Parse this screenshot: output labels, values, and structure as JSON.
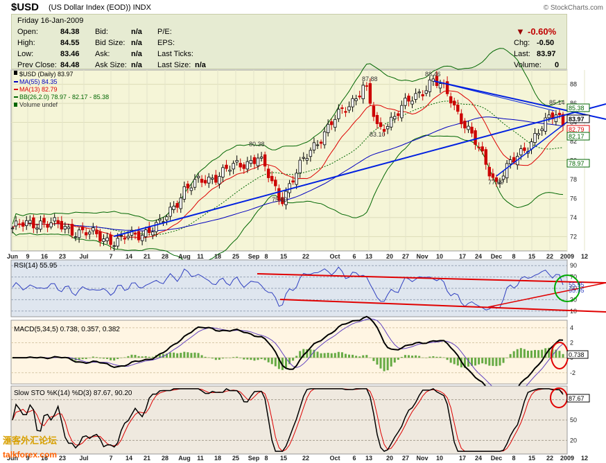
{
  "header": {
    "symbol": "$USD",
    "description": "(US Dollar Index (EOD))",
    "exchange": "INDX",
    "credit": "© StockCharts.com"
  },
  "quote": {
    "date": "Friday  16-Jan-2009",
    "open_label": "Open:",
    "open": "84.38",
    "high_label": "High:",
    "high": "84.55",
    "low_label": "Low:",
    "low": "83.46",
    "prev_label": "Prev Close:",
    "prev": "84.48",
    "bid_label": "Bid:",
    "bid": "n/a",
    "bidsize_label": "Bid Size:",
    "bidsize": "n/a",
    "ask_label": "Ask:",
    "ask": "n/a",
    "asksize_label": "Ask Size:",
    "asksize": "n/a",
    "pe_label": "P/E:",
    "eps_label": "EPS:",
    "lastticks_label": "Last Ticks:",
    "lastsize_label": "Last Size:",
    "lastsize": "n/a",
    "pct_change": "-0.60%",
    "chg_label": "Chg:",
    "chg": "-0.50",
    "last_label": "Last:",
    "last": "83.97",
    "volume_label": "Volume:",
    "volume": "0",
    "down_color": "#990000"
  },
  "legend": {
    "price": "$USD (Daily) 83.97",
    "ma55": "MA(55) 84.35",
    "ma13": "MA(13) 82.79",
    "bb": "BB(26,2.0) 78.97 - 82.17 - 85.38",
    "volume": "Volume undef"
  },
  "annotations": {
    "p1": "80.38",
    "p2": "75.89",
    "p3": "87.88",
    "p4": "83.10",
    "p5": "88.46",
    "p6": "77.69",
    "p7": "85.14"
  },
  "badges": {
    "bb_upper": "85.38",
    "last": "83.97",
    "ma13": "82.79",
    "bb_mid": "82.17",
    "bb_lower": "78.97",
    "rsi_a": "55.95",
    "rsi_b": "55.95",
    "macd": "0.738",
    "sto": "87.67"
  },
  "panels": {
    "rsi_label": "RSI(14) 55.95",
    "macd_label": "MACD(5,34,5) 0.738, 0.357, 0.382",
    "sto_label": "Slow STO %K(14) %D(3) 87.67, 90.20"
  },
  "watermark": {
    "line1": "滙客外汇论坛",
    "line2": "talkforex.com"
  },
  "colors": {
    "price_bg": "#f5f5d7",
    "rsi_bg": "#dfe6ef",
    "macd_bg": "#fff5e3",
    "sto_bg": "#efe9df",
    "up": "#000000",
    "down": "#cc0000",
    "ma55": "#0000c0",
    "ma13": "#dd0000",
    "bb": "#006600",
    "trend_blue": "#0020e0",
    "trend_red": "#e00000"
  },
  "chart_data": {
    "type": "line",
    "x_ticks": [
      "Jun",
      "9",
      "16",
      "23",
      "Jul",
      "7",
      "14",
      "21",
      "28",
      "Aug",
      "11",
      "18",
      "25",
      "Sep",
      "8",
      "15",
      "22",
      "Oct",
      "6",
      "13",
      "20",
      "27",
      "Nov",
      "10",
      "17",
      "24",
      "Dec",
      "8",
      "15",
      "22",
      "2009",
      "12"
    ],
    "price_panel": {
      "y_ticks": [
        72,
        74,
        76,
        78,
        80,
        82,
        84,
        86,
        88
      ],
      "ylim": [
        70.5,
        89.5
      ],
      "key_points": [
        {
          "x": "Jun 2",
          "y": 72.9
        },
        {
          "x": "Jun 13",
          "y": 73.6
        },
        {
          "x": "Jul 15",
          "y": 71.5
        },
        {
          "x": "Aug 1",
          "y": 73.2
        },
        {
          "x": "Aug 15",
          "y": 77.0
        },
        {
          "x": "Sep 10",
          "y": 80.38
        },
        {
          "x": "Sep 22",
          "y": 75.89
        },
        {
          "x": "Oct 10",
          "y": 81.5
        },
        {
          "x": "Oct 27",
          "y": 87.88
        },
        {
          "x": "Oct 31",
          "y": 83.1
        },
        {
          "x": "Nov 21",
          "y": 88.46
        },
        {
          "x": "Dec 1",
          "y": 86.8
        },
        {
          "x": "Dec 18",
          "y": 77.69
        },
        {
          "x": "Dec 29",
          "y": 81.2
        },
        {
          "x": "Jan 14",
          "y": 85.14
        },
        {
          "x": "Jan 16",
          "y": 83.97
        }
      ]
    },
    "rsi": {
      "y_ticks": [
        10,
        30,
        50,
        70,
        90
      ],
      "last": 55.95
    },
    "macd": {
      "y_ticks": [
        -2,
        0,
        2,
        4
      ],
      "last": [
        0.738,
        0.357,
        0.382
      ]
    },
    "slow_sto": {
      "y_ticks": [
        20,
        50,
        80
      ],
      "last": [
        87.67,
        90.2
      ]
    }
  }
}
